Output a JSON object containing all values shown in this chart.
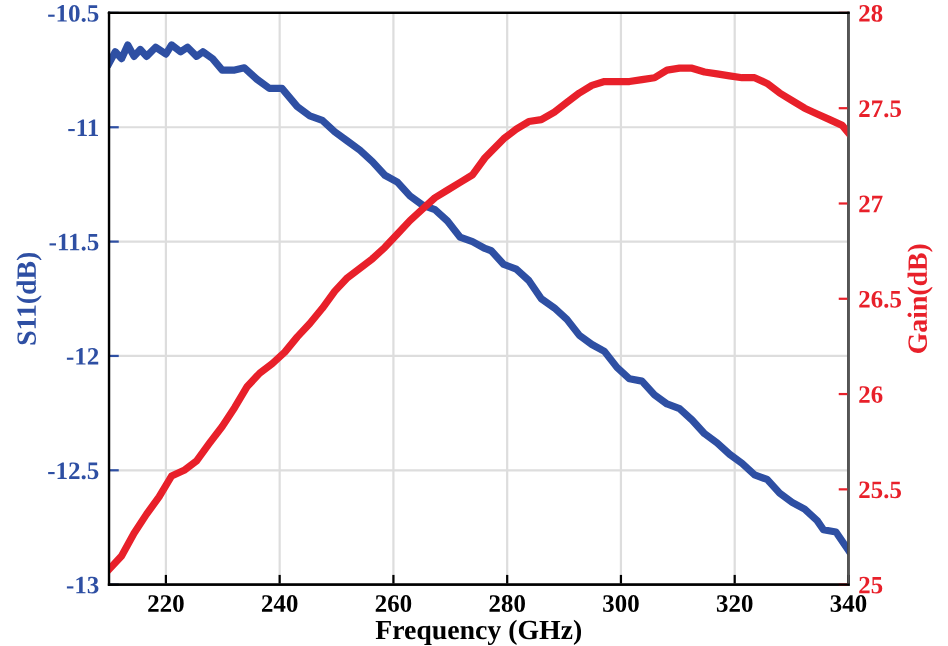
{
  "chart_data": {
    "type": "line",
    "xlabel": "Frequency (GHz)",
    "ylabel": "S11(dB)",
    "y2label": "Gain(dB)",
    "xlim": [
      210,
      340
    ],
    "xticks": [
      220,
      240,
      260,
      280,
      300,
      320,
      340
    ],
    "ylim": [
      -13,
      -10.5
    ],
    "yticks": [
      -13,
      -12.5,
      -12,
      -11.5,
      -11,
      -10.5
    ],
    "y2lim": [
      25,
      28
    ],
    "y2ticks": [
      25,
      25.5,
      26,
      26.5,
      27,
      27.5,
      28
    ],
    "grid": true,
    "legend": false,
    "line_style": "solid",
    "series": [
      {
        "color": "#2e4fa3",
        "x": [
          210,
          211.1,
          212.2,
          213.3,
          214.4,
          215.5,
          216.6,
          218.2,
          220,
          221,
          222.6,
          223.8,
          225.4,
          226.5,
          228.2,
          229.9,
          232.1,
          233.8,
          236,
          238.2,
          240.4,
          243.1,
          245.3,
          247.5,
          249.7,
          251.9,
          254.1,
          256.3,
          258.5,
          260.7,
          262.9,
          265.1,
          267.3,
          269.5,
          271.7,
          273.9,
          276.1,
          277.2,
          279.4,
          281.6,
          283.8,
          286,
          288.3,
          290.5,
          292.7,
          294.9,
          297.1,
          299.3,
          301.5,
          303.7,
          305.9,
          308.1,
          310.3,
          312.5,
          314.7,
          316.9,
          319.1,
          321.3,
          323.5,
          325.7,
          327.9,
          330.1,
          332.3,
          334.5,
          335.6,
          337.8,
          340
        ],
        "values": [
          -10.72,
          -10.67,
          -10.7,
          -10.64,
          -10.69,
          -10.66,
          -10.69,
          -10.65,
          -10.68,
          -10.64,
          -10.67,
          -10.65,
          -10.69,
          -10.67,
          -10.7,
          -10.75,
          -10.75,
          -10.74,
          -10.79,
          -10.83,
          -10.83,
          -10.91,
          -10.95,
          -10.97,
          -11.02,
          -11.06,
          -11.1,
          -11.15,
          -11.21,
          -11.24,
          -11.3,
          -11.34,
          -11.36,
          -11.41,
          -11.48,
          -11.5,
          -11.53,
          -11.54,
          -11.6,
          -11.62,
          -11.67,
          -11.75,
          -11.79,
          -11.84,
          -11.91,
          -11.95,
          -11.98,
          -12.05,
          -12.1,
          -12.11,
          -12.17,
          -12.21,
          -12.23,
          -12.28,
          -12.34,
          -12.38,
          -12.43,
          -12.47,
          -12.52,
          -12.54,
          -12.6,
          -12.64,
          -12.67,
          -12.72,
          -12.76,
          -12.77,
          -12.85
        ]
      },
      {
        "color": "#e8202a",
        "axis": "y2",
        "x": [
          210,
          212.2,
          214.4,
          216.6,
          218.8,
          221,
          223.2,
          225.4,
          227.6,
          229.9,
          232.1,
          234.3,
          236.5,
          238.7,
          240.9,
          243.1,
          245.3,
          247.5,
          249.7,
          251.9,
          254.1,
          256.3,
          258.5,
          260.7,
          262.9,
          265.1,
          267.3,
          269.5,
          271.7,
          273.9,
          276.1,
          279.4,
          281.6,
          283.8,
          286,
          288.3,
          290.5,
          292.7,
          294.9,
          297.1,
          299.3,
          301.5,
          303.7,
          305.9,
          308.1,
          310.3,
          312.5,
          314.7,
          316.9,
          319.1,
          321.3,
          323.5,
          325.7,
          327.9,
          330.1,
          332.3,
          334.5,
          336.7,
          338.9,
          340
        ],
        "values": [
          25.08,
          25.15,
          25.27,
          25.37,
          25.46,
          25.57,
          25.6,
          25.65,
          25.74,
          25.83,
          25.93,
          26.04,
          26.11,
          26.16,
          26.22,
          26.3,
          26.37,
          26.45,
          26.54,
          26.61,
          26.66,
          26.71,
          26.77,
          26.84,
          26.91,
          26.97,
          27.03,
          27.07,
          27.11,
          27.15,
          27.24,
          27.34,
          27.39,
          27.43,
          27.44,
          27.48,
          27.53,
          27.58,
          27.62,
          27.64,
          27.64,
          27.64,
          27.65,
          27.66,
          27.7,
          27.71,
          27.71,
          27.69,
          27.68,
          27.67,
          27.66,
          27.66,
          27.63,
          27.58,
          27.54,
          27.5,
          27.47,
          27.44,
          27.41,
          27.37
        ]
      }
    ]
  }
}
